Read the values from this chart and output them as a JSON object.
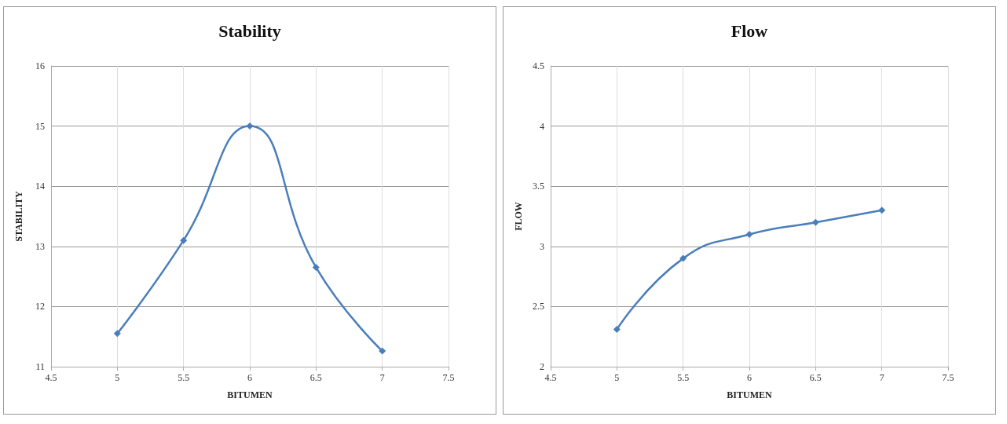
{
  "chart_data": [
    {
      "type": "line",
      "title": "Stability",
      "xlabel": "BITUMEN",
      "ylabel": "STABILITY",
      "x": [
        5,
        5.5,
        6,
        6.5,
        7
      ],
      "series": [
        {
          "color": "#4a7ebb",
          "values": [
            11.55,
            13.1,
            15.0,
            12.65,
            11.26
          ]
        }
      ],
      "xlim": [
        4.5,
        7.5
      ],
      "xticks": [
        4.5,
        5,
        5.5,
        6,
        6.5,
        7,
        7.5
      ],
      "ylim": [
        11,
        16
      ],
      "yticks": [
        11,
        12,
        13,
        14,
        15,
        16
      ],
      "grid": true,
      "marker": "diamond",
      "line_style": "solid"
    },
    {
      "type": "line",
      "title": "Flow",
      "xlabel": "BITUMEN",
      "ylabel": "FLOW",
      "x": [
        5,
        5.5,
        6,
        6.5,
        7
      ],
      "series": [
        {
          "color": "#4a7ebb",
          "values": [
            2.31,
            2.9,
            3.1,
            3.2,
            3.3
          ]
        }
      ],
      "xlim": [
        4.5,
        7.5
      ],
      "xticks": [
        4.5,
        5,
        5.5,
        6,
        6.5,
        7,
        7.5
      ],
      "ylim": [
        2,
        4.5
      ],
      "yticks": [
        2,
        2.5,
        3,
        3.5,
        4,
        4.5
      ],
      "grid": true,
      "marker": "diamond",
      "line_style": "solid"
    }
  ]
}
